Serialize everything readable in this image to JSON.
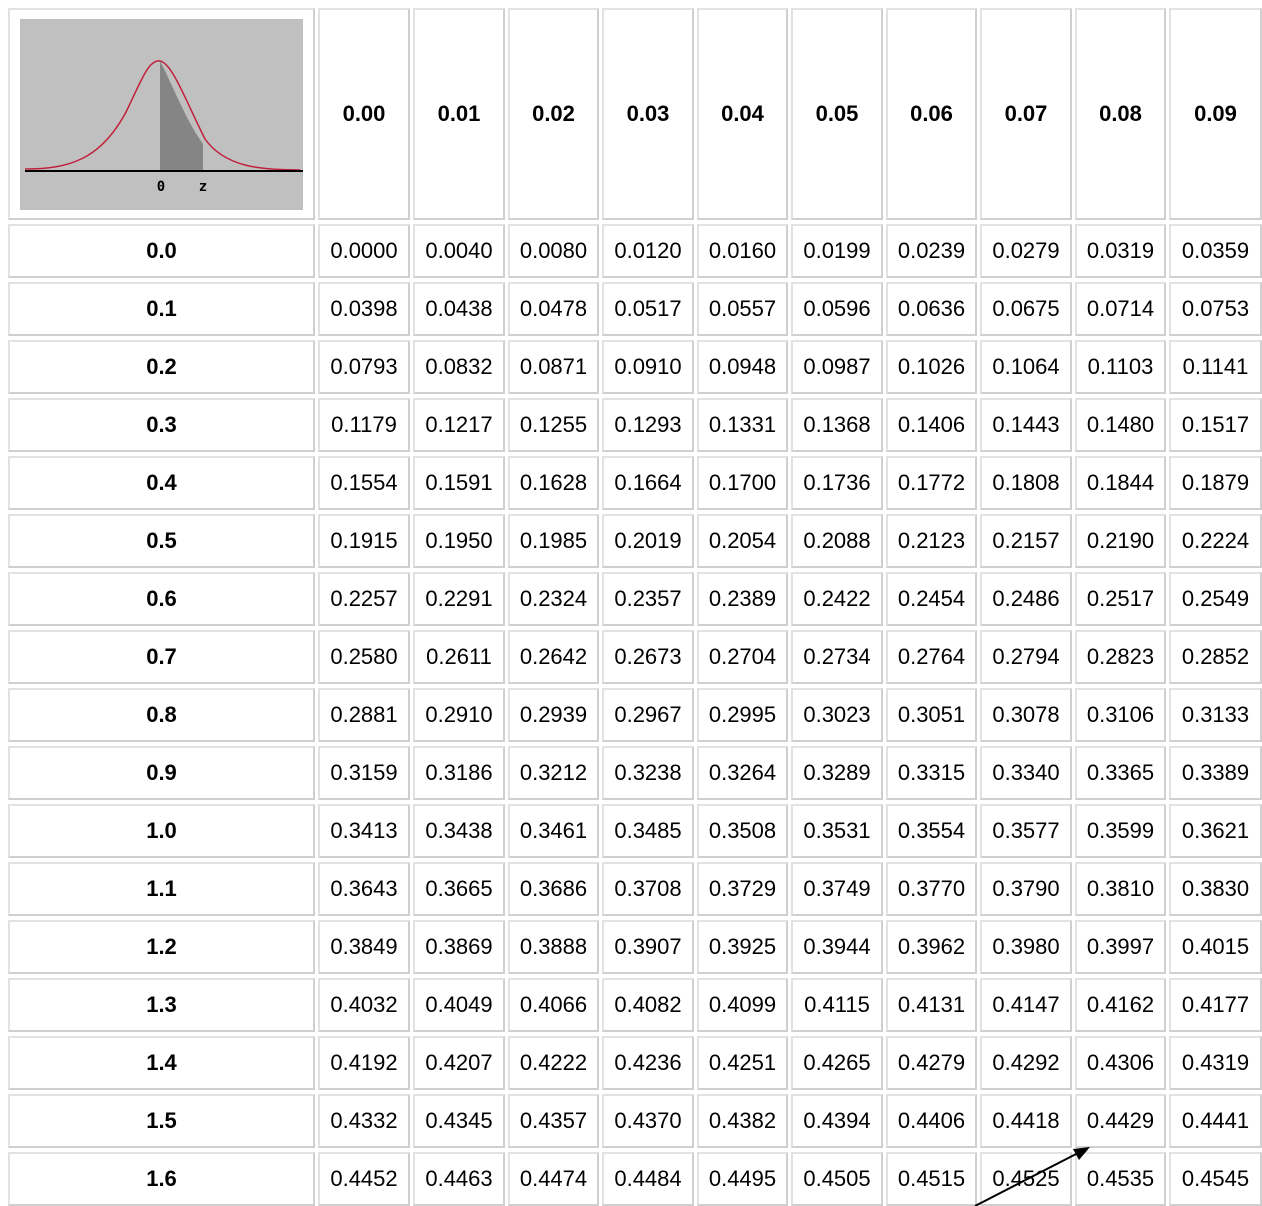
{
  "figure": {
    "labels": [
      "0",
      "z"
    ]
  },
  "table": {
    "header": [
      "0.00",
      "0.01",
      "0.02",
      "0.03",
      "0.04",
      "0.05",
      "0.06",
      "0.07",
      "0.08",
      "0.09"
    ],
    "rows": [
      {
        "label": "0.0",
        "cells": [
          "0.0000",
          "0.0040",
          "0.0080",
          "0.0120",
          "0.0160",
          "0.0199",
          "0.0239",
          "0.0279",
          "0.0319",
          "0.0359"
        ]
      },
      {
        "label": "0.1",
        "cells": [
          "0.0398",
          "0.0438",
          "0.0478",
          "0.0517",
          "0.0557",
          "0.0596",
          "0.0636",
          "0.0675",
          "0.0714",
          "0.0753"
        ]
      },
      {
        "label": "0.2",
        "cells": [
          "0.0793",
          "0.0832",
          "0.0871",
          "0.0910",
          "0.0948",
          "0.0987",
          "0.1026",
          "0.1064",
          "0.1103",
          "0.1141"
        ]
      },
      {
        "label": "0.3",
        "cells": [
          "0.1179",
          "0.1217",
          "0.1255",
          "0.1293",
          "0.1331",
          "0.1368",
          "0.1406",
          "0.1443",
          "0.1480",
          "0.1517"
        ]
      },
      {
        "label": "0.4",
        "cells": [
          "0.1554",
          "0.1591",
          "0.1628",
          "0.1664",
          "0.1700",
          "0.1736",
          "0.1772",
          "0.1808",
          "0.1844",
          "0.1879"
        ]
      },
      {
        "label": "0.5",
        "cells": [
          "0.1915",
          "0.1950",
          "0.1985",
          "0.2019",
          "0.2054",
          "0.2088",
          "0.2123",
          "0.2157",
          "0.2190",
          "0.2224"
        ]
      },
      {
        "label": "0.6",
        "cells": [
          "0.2257",
          "0.2291",
          "0.2324",
          "0.2357",
          "0.2389",
          "0.2422",
          "0.2454",
          "0.2486",
          "0.2517",
          "0.2549"
        ]
      },
      {
        "label": "0.7",
        "cells": [
          "0.2580",
          "0.2611",
          "0.2642",
          "0.2673",
          "0.2704",
          "0.2734",
          "0.2764",
          "0.2794",
          "0.2823",
          "0.2852"
        ]
      },
      {
        "label": "0.8",
        "cells": [
          "0.2881",
          "0.2910",
          "0.2939",
          "0.2967",
          "0.2995",
          "0.3023",
          "0.3051",
          "0.3078",
          "0.3106",
          "0.3133"
        ]
      },
      {
        "label": "0.9",
        "cells": [
          "0.3159",
          "0.3186",
          "0.3212",
          "0.3238",
          "0.3264",
          "0.3289",
          "0.3315",
          "0.3340",
          "0.3365",
          "0.3389"
        ]
      },
      {
        "label": "1.0",
        "cells": [
          "0.3413",
          "0.3438",
          "0.3461",
          "0.3485",
          "0.3508",
          "0.3531",
          "0.3554",
          "0.3577",
          "0.3599",
          "0.3621"
        ]
      },
      {
        "label": "1.1",
        "cells": [
          "0.3643",
          "0.3665",
          "0.3686",
          "0.3708",
          "0.3729",
          "0.3749",
          "0.3770",
          "0.3790",
          "0.3810",
          "0.3830"
        ]
      },
      {
        "label": "1.2",
        "cells": [
          "0.3849",
          "0.3869",
          "0.3888",
          "0.3907",
          "0.3925",
          "0.3944",
          "0.3962",
          "0.3980",
          "0.3997",
          "0.4015"
        ]
      },
      {
        "label": "1.3",
        "cells": [
          "0.4032",
          "0.4049",
          "0.4066",
          "0.4082",
          "0.4099",
          "0.4115",
          "0.4131",
          "0.4147",
          "0.4162",
          "0.4177"
        ]
      },
      {
        "label": "1.4",
        "cells": [
          "0.4192",
          "0.4207",
          "0.4222",
          "0.4236",
          "0.4251",
          "0.4265",
          "0.4279",
          "0.4292",
          "0.4306",
          "0.4319"
        ]
      },
      {
        "label": "1.5",
        "cells": [
          "0.4332",
          "0.4345",
          "0.4357",
          "0.4370",
          "0.4382",
          "0.4394",
          "0.4406",
          "0.4418",
          "0.4429",
          "0.4441"
        ]
      },
      {
        "label": "1.6",
        "cells": [
          "0.4452",
          "0.4463",
          "0.4474",
          "0.4484",
          "0.4495",
          "0.4505",
          "0.4515",
          "0.4525",
          "0.4535",
          "0.4545"
        ]
      }
    ]
  }
}
